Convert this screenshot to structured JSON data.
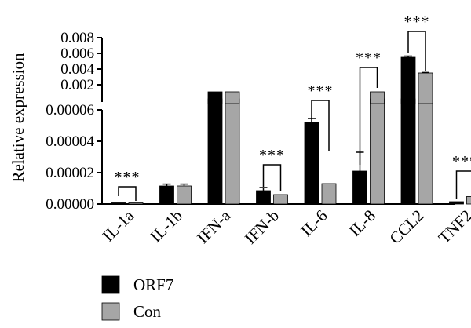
{
  "chart_data": {
    "type": "bar",
    "ylabel": "Relative expression",
    "categories": [
      "IL-1a",
      "IL-1b",
      "IFN-a",
      "IFN-b",
      "IL-6",
      "IL-8",
      "CCL2",
      "TNF2"
    ],
    "series": [
      {
        "name": "ORF7",
        "color": "#000000",
        "values": [
          2e-07,
          1.15e-05,
          7e-05,
          8.5e-06,
          5.2e-05,
          2.1e-05,
          0.0055,
          1.5e-06
        ],
        "errors": [
          0.0,
          1.2e-06,
          0.0,
          2e-06,
          2.5e-06,
          1.2e-05,
          0.00015,
          0.0
        ]
      },
      {
        "name": "Con",
        "color": "#a6a6a6",
        "values": [
          7e-07,
          1.15e-05,
          7e-05,
          6e-06,
          1.3e-05,
          0.001,
          0.0035,
          4.8e-06
        ],
        "errors": [
          0.0,
          1.2e-06,
          0.0,
          0.0,
          0.0,
          0.0,
          6e-05,
          0.0
        ]
      }
    ],
    "y_axis_segments": [
      {
        "range": [
          0,
          6e-05
        ],
        "ticks": [
          "0.00000",
          "0.00002",
          "0.00004",
          "0.00006"
        ]
      },
      {
        "range": [
          0,
          0.008
        ],
        "ticks": [
          "0.002",
          "0.004",
          "0.006",
          "0.008"
        ]
      }
    ],
    "significance": [
      {
        "category": "IL-1a",
        "label": "***"
      },
      {
        "category": "IFN-b",
        "label": "***"
      },
      {
        "category": "IL-6",
        "label": "***"
      },
      {
        "category": "IL-8",
        "label": "***"
      },
      {
        "category": "CCL2",
        "label": "***"
      },
      {
        "category": "TNF2",
        "label": "***"
      }
    ],
    "legend": {
      "placement": "bottom-left",
      "entries": [
        "ORF7",
        "Con"
      ]
    }
  }
}
